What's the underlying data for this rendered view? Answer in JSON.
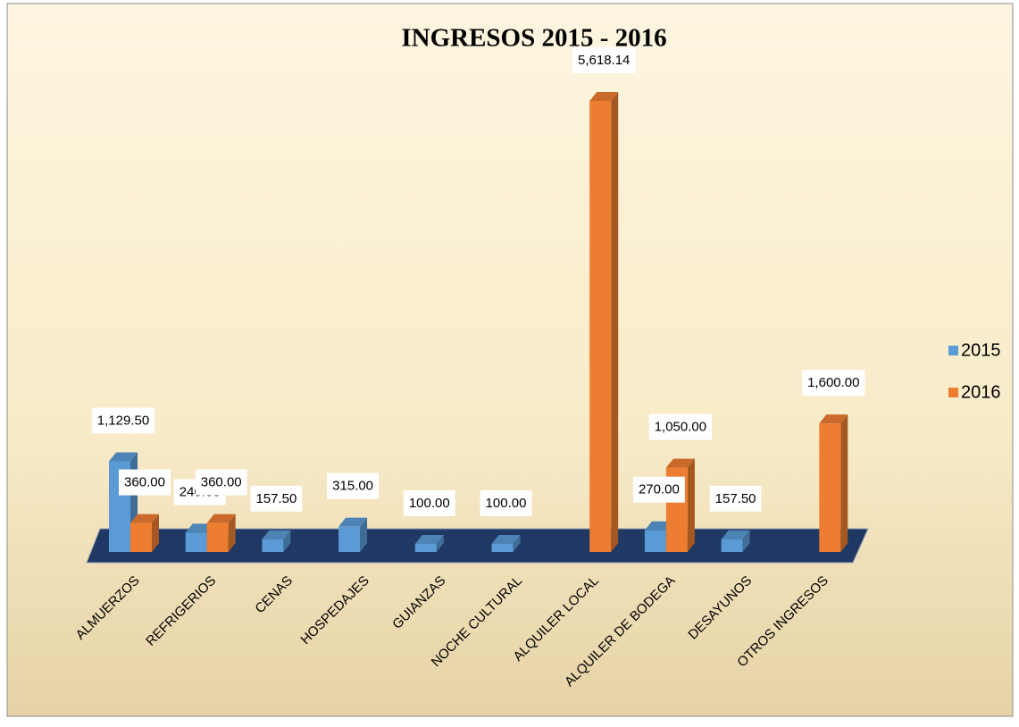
{
  "chart_data": {
    "type": "bar",
    "title": "INGRESOS 2015 - 2016",
    "categories": [
      "ALMUERZOS",
      "REFRIGERIOS",
      "CENAS",
      "HOSPEDAJES",
      "GUIANZAS",
      "NOCHE CULTURAL",
      "ALQUILER LOCAL",
      "ALQUILER DE BODEGA",
      "DESAYUNOS",
      "OTROS INGRESOS"
    ],
    "series": [
      {
        "name": "2015",
        "color": "#5b9bd5",
        "values": [
          1129.5,
          240,
          157.5,
          315,
          100,
          100,
          null,
          270,
          157.5,
          null
        ],
        "value_labels": [
          "1,129.50",
          "240.00",
          "157.50",
          "315.00",
          "100.00",
          "100.00",
          null,
          "270.00",
          "157.50",
          null
        ]
      },
      {
        "name": "2016",
        "color": "#ed7d31",
        "values": [
          360,
          360,
          null,
          null,
          null,
          null,
          5618.14,
          1050,
          null,
          1600
        ],
        "value_labels": [
          "360.00",
          "360.00",
          null,
          null,
          null,
          null,
          "5,618.14",
          "1,050.00",
          null,
          "1,600.00"
        ]
      }
    ],
    "legend": "right"
  }
}
